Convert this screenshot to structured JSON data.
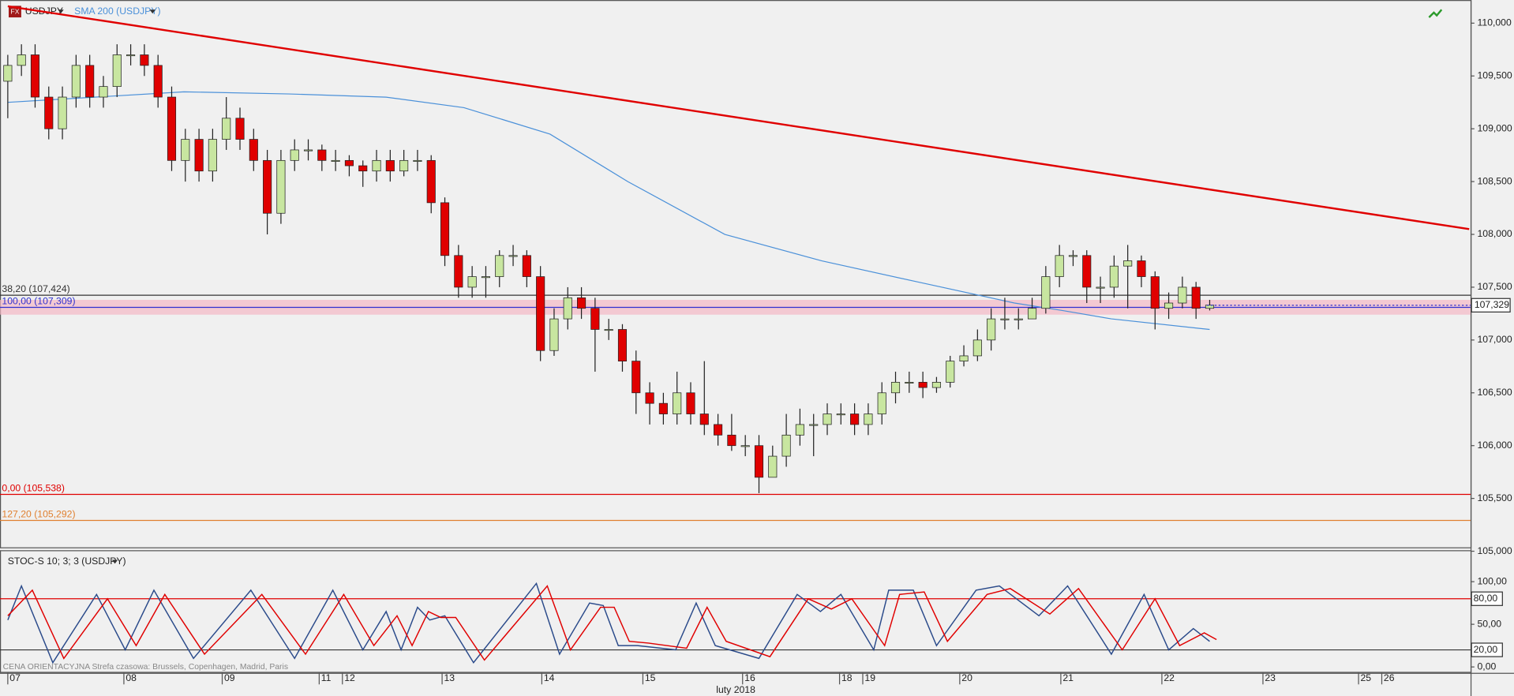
{
  "chart_data": [
    {
      "type": "candlestick",
      "badge": "FX",
      "title": "USDJPY",
      "up_color": "#c8e6a0",
      "down_color": "#e00000",
      "x": [
        0,
        1,
        2,
        3,
        4,
        5,
        6,
        7,
        8,
        9,
        10,
        11,
        12,
        13,
        14,
        15,
        16,
        17,
        18,
        19,
        20,
        21,
        22,
        23,
        24,
        25,
        26,
        27,
        28,
        29,
        30,
        31,
        32,
        33,
        34,
        35,
        36,
        37,
        38,
        39,
        40,
        41,
        42,
        43,
        44,
        45,
        46,
        47,
        48,
        49,
        50,
        51,
        52,
        53,
        54,
        55,
        56,
        57,
        58,
        59,
        60,
        61,
        62,
        63,
        64,
        65,
        66,
        67,
        68,
        69,
        70,
        71,
        72,
        73,
        74,
        75,
        76,
        77,
        78,
        79,
        80,
        81,
        82,
        83,
        84,
        85,
        86,
        87,
        88
      ],
      "open": [
        109.45,
        109.6,
        109.7,
        109.3,
        109.0,
        109.3,
        109.6,
        109.3,
        109.4,
        109.7,
        109.7,
        109.6,
        109.3,
        108.7,
        108.9,
        108.6,
        108.9,
        109.1,
        108.9,
        108.7,
        108.2,
        108.7,
        108.8,
        108.8,
        108.7,
        108.7,
        108.65,
        108.6,
        108.7,
        108.6,
        108.7,
        108.7,
        108.3,
        107.8,
        107.5,
        107.6,
        107.6,
        107.8,
        107.8,
        107.6,
        106.9,
        107.2,
        107.4,
        107.3,
        107.1,
        107.1,
        106.8,
        106.5,
        106.4,
        106.3,
        106.5,
        106.3,
        106.2,
        106.1,
        106.0,
        106.0,
        105.7,
        105.9,
        106.1,
        106.2,
        106.2,
        106.3,
        106.3,
        106.2,
        106.3,
        106.5,
        106.6,
        106.6,
        106.55,
        106.6,
        106.8,
        106.85,
        107.0,
        107.2,
        107.2,
        107.2,
        107.3,
        107.6,
        107.8,
        107.8,
        107.5,
        107.5,
        107.7,
        107.75,
        107.6,
        107.3,
        107.35,
        107.5,
        107.3
      ],
      "high": [
        109.7,
        109.8,
        109.8,
        109.4,
        109.4,
        109.7,
        109.7,
        109.5,
        109.8,
        109.8,
        109.8,
        109.7,
        109.4,
        109.0,
        109.0,
        109.0,
        109.3,
        109.2,
        109.0,
        108.8,
        108.8,
        108.9,
        108.9,
        108.85,
        108.8,
        108.75,
        108.7,
        108.8,
        108.8,
        108.8,
        108.8,
        108.75,
        108.35,
        107.9,
        107.7,
        107.7,
        107.85,
        107.9,
        107.85,
        107.7,
        107.3,
        107.5,
        107.5,
        107.4,
        107.2,
        107.15,
        106.9,
        106.6,
        106.5,
        106.7,
        106.6,
        106.8,
        106.3,
        106.3,
        106.1,
        106.1,
        106.0,
        106.3,
        106.35,
        106.3,
        106.4,
        106.4,
        106.4,
        106.4,
        106.6,
        106.7,
        106.7,
        106.7,
        106.65,
        106.85,
        106.95,
        107.1,
        107.3,
        107.4,
        107.3,
        107.4,
        107.7,
        107.9,
        107.85,
        107.85,
        107.6,
        107.8,
        107.9,
        107.8,
        107.65,
        107.45,
        107.6,
        107.55,
        107.38
      ],
      "low": [
        109.1,
        109.5,
        109.2,
        108.9,
        108.9,
        109.2,
        109.2,
        109.2,
        109.3,
        109.6,
        109.5,
        109.2,
        108.6,
        108.5,
        108.5,
        108.5,
        108.8,
        108.8,
        108.6,
        108.0,
        108.1,
        108.6,
        108.7,
        108.6,
        108.6,
        108.55,
        108.45,
        108.5,
        108.5,
        108.55,
        108.6,
        108.2,
        107.7,
        107.4,
        107.4,
        107.4,
        107.5,
        107.7,
        107.5,
        106.8,
        106.85,
        107.1,
        107.2,
        106.7,
        107.0,
        106.7,
        106.3,
        106.2,
        106.2,
        106.2,
        106.2,
        106.1,
        106.0,
        105.95,
        105.9,
        105.55,
        105.7,
        105.8,
        106.0,
        105.9,
        106.1,
        106.2,
        106.1,
        106.1,
        106.2,
        106.4,
        106.5,
        106.45,
        106.5,
        106.55,
        106.75,
        106.8,
        106.9,
        107.1,
        107.1,
        107.2,
        107.25,
        107.5,
        107.7,
        107.35,
        107.35,
        107.4,
        107.3,
        107.5,
        107.1,
        107.2,
        107.3,
        107.2,
        107.28
      ],
      "close": [
        109.6,
        109.7,
        109.3,
        109.0,
        109.3,
        109.6,
        109.3,
        109.4,
        109.7,
        109.7,
        109.6,
        109.3,
        108.7,
        108.9,
        108.6,
        108.9,
        109.1,
        108.9,
        108.7,
        108.2,
        108.7,
        108.8,
        108.8,
        108.7,
        108.7,
        108.65,
        108.6,
        108.7,
        108.6,
        108.7,
        108.7,
        108.3,
        107.8,
        107.5,
        107.6,
        107.6,
        107.8,
        107.8,
        107.6,
        106.9,
        107.2,
        107.4,
        107.3,
        107.1,
        107.1,
        106.8,
        106.5,
        106.4,
        106.3,
        106.5,
        106.3,
        106.2,
        106.1,
        106.0,
        106.0,
        105.7,
        105.9,
        106.1,
        106.2,
        106.2,
        106.3,
        106.3,
        106.2,
        106.3,
        106.5,
        106.6,
        106.6,
        106.55,
        106.6,
        106.8,
        106.85,
        107.0,
        107.2,
        107.2,
        107.2,
        107.3,
        107.6,
        107.8,
        107.8,
        107.5,
        107.5,
        107.7,
        107.75,
        107.6,
        107.3,
        107.35,
        107.5,
        107.3,
        107.33
      ],
      "series": [
        {
          "name": "SMA 200 (USDJPY)",
          "color": "#4a90d9",
          "x": [
            0,
            12.9,
            20.6,
            27.7,
            33.4,
            39.7,
            45.4,
            52.5,
            59.6,
            66.6,
            73.7,
            77.2,
            80.8,
            88
          ],
          "values": [
            109.25,
            109.35,
            109.33,
            109.3,
            109.2,
            108.95,
            108.5,
            108.0,
            107.75,
            107.55,
            107.35,
            107.28,
            107.2,
            107.1
          ]
        }
      ],
      "trendlines": [
        {
          "color": "#e00000",
          "x": [
            0,
            107
          ],
          "values": [
            110.16,
            108.05
          ]
        }
      ],
      "levels": [
        {
          "label": "38,20 (107,424)",
          "value": 107.424,
          "color": "#333333"
        },
        {
          "label": "100,00 (107,309)",
          "value": 107.309,
          "color": "#3030d0"
        },
        {
          "label": "0,00 (105,538)",
          "value": 105.538,
          "color": "#e00000"
        },
        {
          "label": "127,20 (105,292)",
          "value": 105.292,
          "color": "#e08030"
        }
      ],
      "zone": [
        107.38,
        107.24
      ],
      "last_price": {
        "value": 107.329,
        "label": "107,329"
      },
      "xlim": [
        -0.57,
        107.1
      ],
      "ylim": [
        105.037,
        110.219
      ],
      "yticks": [
        {
          "value": 105,
          "label": "105,000"
        },
        {
          "value": 105.5,
          "label": "105,500"
        },
        {
          "value": 106,
          "label": "106,000"
        },
        {
          "value": 106.5,
          "label": "106,500"
        },
        {
          "value": 107,
          "label": "107,000"
        },
        {
          "value": 107.5,
          "label": "107,500"
        },
        {
          "value": 108,
          "label": "108,000"
        },
        {
          "value": 108.5,
          "label": "108,500"
        },
        {
          "value": 109,
          "label": "109,000"
        },
        {
          "value": 109.5,
          "label": "109,500"
        },
        {
          "value": 110,
          "label": "110,000"
        }
      ],
      "xticks": [
        {
          "value": 0,
          "label": "07"
        },
        {
          "value": 8.5,
          "label": "08"
        },
        {
          "value": 15.7,
          "label": "09"
        },
        {
          "value": 22.8,
          "label": "11"
        },
        {
          "value": 24.5,
          "label": "12"
        },
        {
          "value": 31.8,
          "label": "13"
        },
        {
          "value": 39.1,
          "label": "14"
        },
        {
          "value": 46.5,
          "label": "15"
        },
        {
          "value": 53.8,
          "label": "16"
        },
        {
          "value": 60.9,
          "label": "18"
        },
        {
          "value": 62.6,
          "label": "19"
        },
        {
          "value": 69.7,
          "label": "20"
        },
        {
          "value": 77.1,
          "label": "21"
        },
        {
          "value": 84.5,
          "label": "22"
        },
        {
          "value": 91.9,
          "label": "23"
        },
        {
          "value": 98.9,
          "label": "25"
        },
        {
          "value": 100.6,
          "label": "26"
        }
      ],
      "xlabel": "luty 2018"
    },
    {
      "type": "line",
      "title": "STOC-S 10; 3; 3 (USDJPY)",
      "note": "CENA ORIENTACYJNA   Strefa czasowa: Brussels, Copenhagen, Madrid, Paris",
      "series": [
        {
          "color": "#2a4a8a",
          "x": [
            0,
            1,
            3.3,
            6.5,
            8.6,
            10.7,
            13.6,
            17.8,
            21,
            23.8,
            26,
            27.7,
            28.8,
            30,
            30.9,
            32,
            34.1,
            38.7,
            40.4,
            42.6,
            43.6,
            44.7,
            46.1,
            48.9,
            50.4,
            51.8,
            55,
            57.8,
            59.5,
            61,
            63.4,
            64.5,
            66.3,
            68,
            70.9,
            72.6,
            75.5,
            77.6,
            80.8,
            83.2,
            85,
            86.8,
            88
          ],
          "values": [
            55,
            95,
            5,
            85,
            20,
            90,
            10,
            90,
            10,
            90,
            20,
            65,
            20,
            70,
            55,
            60,
            5,
            98,
            15,
            75,
            72,
            25,
            25,
            20,
            75,
            25,
            10,
            85,
            65,
            85,
            20,
            90,
            90,
            25,
            90,
            95,
            60,
            95,
            15,
            85,
            20,
            45,
            30
          ]
        },
        {
          "color": "#e00000",
          "x": [
            0,
            1.8,
            4.1,
            7.3,
            9.4,
            11.5,
            14.4,
            18.6,
            21.8,
            24.6,
            26.8,
            28.5,
            29.6,
            30.8,
            31.7,
            32.8,
            34.9,
            39.5,
            41.2,
            43.4,
            44.4,
            45.5,
            46.9,
            49.7,
            51.2,
            52.6,
            55.8,
            58.6,
            60.3,
            61.8,
            64.2,
            65.3,
            67.1,
            68.8,
            71.7,
            73.4,
            76.3,
            78.4,
            81.6,
            84,
            85.8,
            87.6,
            88.5
          ],
          "values": [
            60,
            90,
            10,
            80,
            25,
            85,
            15,
            85,
            15,
            85,
            25,
            60,
            25,
            65,
            58,
            58,
            8,
            95,
            20,
            70,
            70,
            30,
            28,
            22,
            70,
            30,
            12,
            80,
            68,
            80,
            25,
            85,
            88,
            30,
            85,
            92,
            62,
            92,
            20,
            80,
            25,
            40,
            32
          ]
        }
      ],
      "levels": [
        {
          "value": 80,
          "label": "80,00",
          "color": "#e00000"
        },
        {
          "value": 20,
          "label": "20,00",
          "color": "#333333"
        }
      ],
      "ylim": [
        -6.9,
        136.9
      ],
      "yticks": [
        {
          "value": 0,
          "label": "0,00"
        },
        {
          "value": 50,
          "label": "50,00"
        },
        {
          "value": 100,
          "label": "100,00"
        }
      ]
    }
  ]
}
